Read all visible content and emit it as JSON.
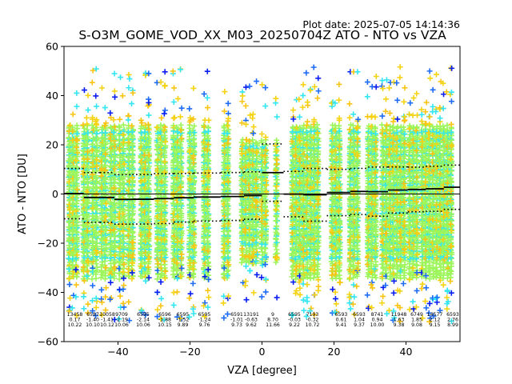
{
  "header": {
    "plot_date": "Plot date: 2025-07-05 14:14:36",
    "title": "S-O3M_GOME_VOD_XX_M03_20250704Z ATO - NTO vs VZA"
  },
  "chart_data": {
    "type": "scatter",
    "title": "S-O3M_GOME_VOD_XX_M03_20250704Z ATO - NTO vs VZA",
    "xlabel": "VZA [degree]",
    "ylabel": "ATO - NTO [DU]",
    "xlim": [
      -55,
      55
    ],
    "ylim": [
      -60,
      60
    ],
    "xticks": [
      "−40",
      "−20",
      "0",
      "20",
      "40"
    ],
    "yticks": [
      "−60",
      "−40",
      "−20",
      "0",
      "20",
      "40",
      "60"
    ],
    "grid": false,
    "marker": "plus",
    "reference_line_y": 0,
    "bins": [
      {
        "vza": -52,
        "n": "13458",
        "mean": "0.17",
        "std": "10.22"
      },
      {
        "vza": -47,
        "n": "6587",
        "mean": "-1.40",
        "std": "10.10"
      },
      {
        "vza": -43,
        "n": "10058",
        "mean": "-1.41",
        "std": "10.12"
      },
      {
        "vza": -39,
        "n": "9709",
        "mean": "-2.19",
        "std": "10.06"
      },
      {
        "vza": -33,
        "n": "6595",
        "mean": "-2.14",
        "std": "10.06"
      },
      {
        "vza": -27,
        "n": "6596",
        "mean": "-1.88",
        "std": "10.15"
      },
      {
        "vza": -22,
        "n": "6595",
        "mean": "-1.52",
        "std": "9.89"
      },
      {
        "vza": -16,
        "n": "6595",
        "mean": "-1.24",
        "std": "9.76"
      },
      {
        "vza": -7,
        "n": "6591",
        "mean": "-1.01",
        "std": "9.73"
      },
      {
        "vza": -3,
        "n": "13191",
        "mean": "-0.63",
        "std": "9.62"
      },
      {
        "vza": 3,
        "n": "9",
        "mean": "8.70",
        "std": "11.66"
      },
      {
        "vza": 9,
        "n": "6595",
        "mean": "-0.03",
        "std": "9.22"
      },
      {
        "vza": 14,
        "n": "7193",
        "mean": "-0.32",
        "std": "10.72"
      },
      {
        "vza": 22,
        "n": "6593",
        "mean": "0.61",
        "std": "9.41"
      },
      {
        "vza": 27,
        "n": "6593",
        "mean": "1.04",
        "std": "9.37"
      },
      {
        "vza": 32,
        "n": "8741",
        "mean": "0.94",
        "std": "10.00"
      },
      {
        "vza": 38,
        "n": "11948",
        "mean": "1.63",
        "std": "9.38"
      },
      {
        "vza": 43,
        "n": "6749",
        "mean": "1.85",
        "std": "9.08"
      },
      {
        "vza": 48,
        "n": "14577",
        "mean": "2.12",
        "std": "9.15"
      },
      {
        "vza": 53,
        "n": "6593",
        "mean": "2.76",
        "std": "8.99"
      }
    ],
    "point_columns_vza": [
      -53.5,
      -52.5,
      -51.5,
      -49.5,
      -48.5,
      -47,
      -46,
      -44.5,
      -43.5,
      -42,
      -41,
      -39.5,
      -38.5,
      -37,
      -36,
      -33.5,
      -32.5,
      -31.5,
      -29,
      -28,
      -27,
      -24.5,
      -23.5,
      -22.5,
      -20,
      -19,
      -16,
      -15,
      -10.5,
      -9.5,
      -5.5,
      -4.5,
      -3.5,
      -2.5,
      -1.5,
      0,
      1,
      4,
      8.5,
      9.5,
      10.5,
      11.5,
      12.5,
      13.5,
      14.5,
      15.5,
      19.5,
      20.5,
      21.5,
      24.5,
      25.5,
      26.5,
      29.5,
      30.5,
      31.5,
      33.5,
      34.5,
      35.5,
      36.5,
      37.5,
      38.5,
      39.5,
      41,
      42,
      43,
      44.5,
      45.5,
      46.5,
      47.5,
      48.5,
      49.5,
      50.5,
      51.5,
      52.5
    ],
    "colors": {
      "band_light_green": "#9cf55a",
      "band_cyan": "#33e6f2",
      "band_yellow": "#f5d312",
      "band_gold": "#fac414",
      "band_blue": "#1e6cf5",
      "band_dark_blue": "#0a1ef0",
      "stat_line": "#000000"
    }
  }
}
